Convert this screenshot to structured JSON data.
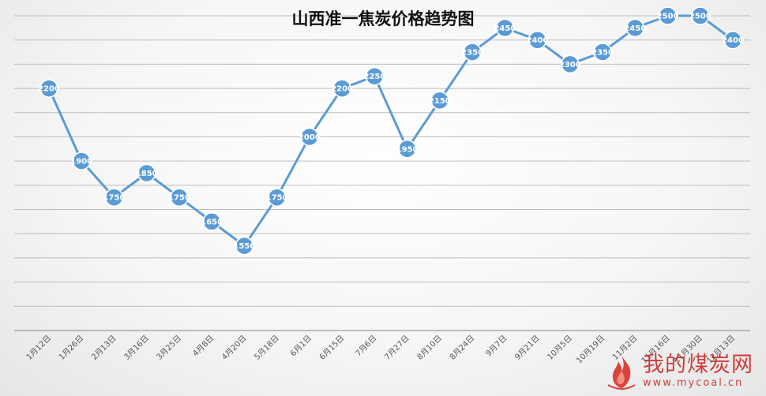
{
  "chart_data": {
    "type": "line",
    "title": "山西准一焦炭价格趋势图",
    "categories": [
      "1月12日",
      "1月26日",
      "2月13日",
      "3月16日",
      "3月25日",
      "4月8日",
      "4月20日",
      "5月18日",
      "6月1日",
      "6月15日",
      "7月6日",
      "7月27日",
      "8月10日",
      "8月24日",
      "9月7日",
      "9月21日",
      "10月5日",
      "10月19日",
      "11月2日",
      "11月16日",
      "11月30日",
      "12月13日"
    ],
    "values": [
      2200,
      1900,
      1750,
      1850,
      1750,
      1650,
      1550,
      1750,
      2000,
      2200,
      2250,
      1950,
      2150,
      2350,
      2450,
      2400,
      2300,
      2350,
      2450,
      2500,
      2500,
      2400
    ],
    "ylim": [
      1200,
      2500
    ],
    "grid": true,
    "series_color": "#5b9bd5",
    "legend": "none"
  },
  "watermark": {
    "name": "我的煤炭网",
    "url": "www.mycoal.cn",
    "color": "#c9302c"
  }
}
